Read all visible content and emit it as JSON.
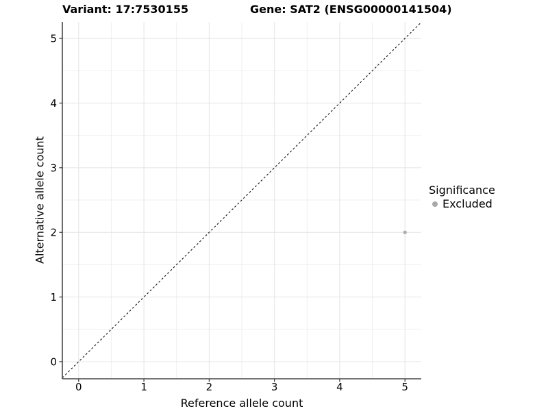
{
  "figure": {
    "background": "#ffffff"
  },
  "chart_data": {
    "type": "scatter",
    "titles": {
      "left": "Variant: 17:7530155",
      "right": "Gene: SAT2 (ENSG00000141504)"
    },
    "xlabel": "Reference allele count",
    "ylabel": "Alternative allele count",
    "xticks": [
      0,
      1,
      2,
      3,
      4,
      5
    ],
    "yticks": [
      0,
      1,
      2,
      3,
      4,
      5
    ],
    "xlim": [
      -0.25,
      5.25
    ],
    "ylim": [
      -0.265,
      5.255
    ],
    "grid": {
      "major": true,
      "minor": true
    },
    "reference_line": {
      "style": "dashed",
      "slope": 1,
      "intercept": 0,
      "color": "#111111"
    },
    "series": [
      {
        "name": "Excluded",
        "color": "#b0b0b0",
        "points": [
          {
            "x": 5,
            "y": 2
          }
        ]
      }
    ],
    "legend": {
      "title": "Significance",
      "position": "right",
      "items": [
        {
          "label": "Excluded",
          "color": "#a9a9a9"
        }
      ]
    },
    "colors": {
      "grid_major": "#e4e4e4",
      "grid_minor": "#efefef",
      "axis_line": "#474747",
      "tick": "#333333",
      "text": "#000000"
    }
  }
}
